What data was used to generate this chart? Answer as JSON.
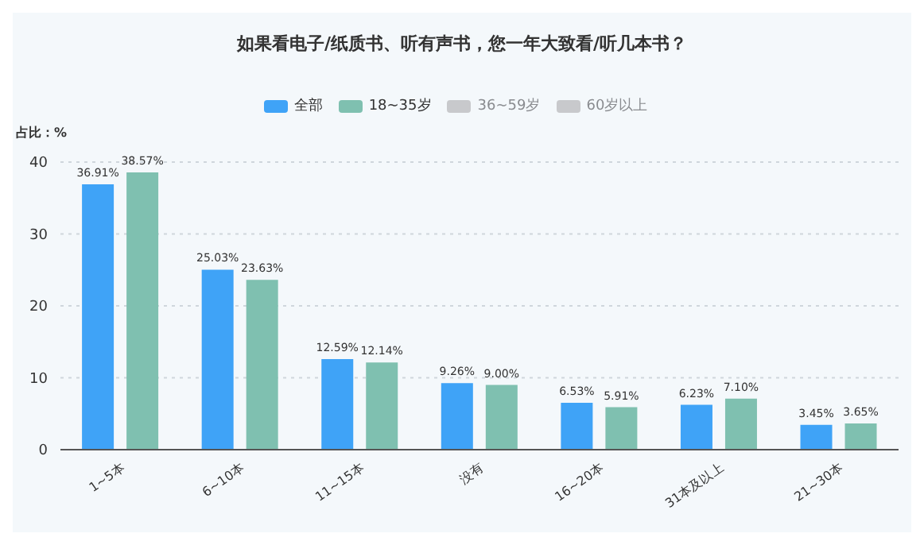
{
  "chart_data": {
    "type": "bar",
    "title": "如果看电子/纸质书、听有声书，您一年大致看/听几本书？",
    "ylabel": "占比：%",
    "categories": [
      "1~5本",
      "6~10本",
      "11~15本",
      "没有",
      "16~20本",
      "31本及以上",
      "21~30本"
    ],
    "series": [
      {
        "name": "全部",
        "color": "#3fa3f7",
        "values": [
          36.91,
          25.03,
          12.59,
          9.26,
          6.53,
          6.23,
          3.45
        ],
        "value_labels": [
          "36.91%",
          "25.03%",
          "12.59%",
          "9.26%",
          "6.53%",
          "6.23%",
          "3.45%"
        ]
      },
      {
        "name": "18~35岁",
        "color": "#7fc0b0",
        "values": [
          38.57,
          23.63,
          12.14,
          9.0,
          5.91,
          7.1,
          3.65
        ],
        "value_labels": [
          "38.57%",
          "23.63%",
          "12.14%",
          "9.00%",
          "5.91%",
          "7.10%",
          "3.65%"
        ]
      },
      {
        "name": "36~59岁",
        "color": "#c8c9cc",
        "values": [
          null,
          null,
          null,
          null,
          null,
          null,
          null
        ]
      },
      {
        "name": "60岁以上",
        "color": "#c8c9cc",
        "values": [
          null,
          null,
          null,
          null,
          null,
          null,
          null
        ]
      }
    ],
    "ylim": [
      0,
      40
    ],
    "yticks": [
      0,
      10,
      20,
      30,
      40
    ],
    "grid": "y",
    "legend": "top"
  }
}
